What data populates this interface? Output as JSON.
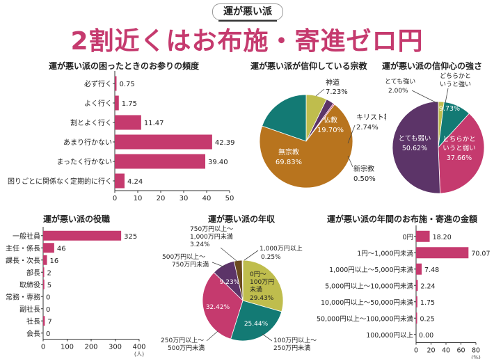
{
  "header": {
    "badge": "運が悪い派",
    "headline": "2割近くはお布施・寄進ゼロ円"
  },
  "colors": {
    "magenta": "#c53a6e",
    "olive": "#bfbd4d",
    "teal": "#137a74",
    "purple": "#5c3468",
    "brown": "#b8741e",
    "darkbrown": "#6b4a1e"
  },
  "chart_data": [
    {
      "id": "visit",
      "type": "bar",
      "orientation": "horizontal",
      "title": "運が悪い派の困ったときのお参りの頻度",
      "categories": [
        "必ず行く",
        "よく行く",
        "割とよく行く",
        "あまり行かない",
        "まったく行かない",
        "困りごとに関係なく定期的に行く"
      ],
      "values": [
        0.75,
        1.75,
        11.47,
        42.39,
        39.4,
        4.24
      ],
      "value_labels": [
        "0.75",
        "1.75",
        "11.47",
        "42.39",
        "39.40",
        "4.24"
      ],
      "ticks": [
        "0",
        "10",
        "20",
        "30",
        "40",
        "50"
      ],
      "unit": "(%)",
      "xlim": [
        0,
        50
      ]
    },
    {
      "id": "religion",
      "type": "pie",
      "title": "運が悪い派が信仰している宗教",
      "labels": [
        "神道",
        "キリスト教",
        "新宗教",
        "無宗教",
        "仏教"
      ],
      "values": [
        7.23,
        2.74,
        0.5,
        69.83,
        19.7
      ],
      "value_labels": [
        "7.23%",
        "2.74%",
        "0.50%",
        "69.83%",
        "19.70%"
      ]
    },
    {
      "id": "faith",
      "type": "pie",
      "title": "運が悪い派の信仰心の強さ",
      "labels": [
        "とても強い",
        "どちらかというと強い",
        "どちらかというと弱い",
        "とても弱い"
      ],
      "label_lines": [
        [
          "とても強い"
        ],
        [
          "どちらかと",
          "いうと強い"
        ],
        [
          "どちらかと",
          "いうと弱い"
        ],
        [
          "とても弱い"
        ]
      ],
      "values": [
        2.0,
        9.73,
        37.66,
        50.62
      ],
      "value_labels": [
        "2.00%",
        "9.73%",
        "37.66%",
        "50.62%"
      ]
    },
    {
      "id": "position",
      "type": "bar",
      "orientation": "horizontal",
      "title": "運が悪い派の役職",
      "categories": [
        "一般社員",
        "主任・係長",
        "課長・次長",
        "部長",
        "取締役",
        "常務・専務",
        "副社長",
        "社長",
        "会長"
      ],
      "values": [
        325,
        46,
        16,
        2,
        5,
        0,
        0,
        7,
        0
      ],
      "value_labels": [
        "325",
        "46",
        "16",
        "2",
        "5",
        "0",
        "0",
        "7",
        "0"
      ],
      "ticks": [
        "0",
        "100",
        "200",
        "300",
        "400"
      ],
      "unit": "(人)",
      "xlim": [
        0,
        400
      ]
    },
    {
      "id": "income",
      "type": "pie",
      "title": "運が悪い派の年収",
      "labels": [
        "0円〜100万円未満",
        "100万円以上〜250万円未満",
        "250万円以上〜500万円未満",
        "500万円以上〜750万円未満",
        "750万円以上〜1,000万円未満",
        "1,000万円以上"
      ],
      "values": [
        29.43,
        25.44,
        32.42,
        9.23,
        3.24,
        0.25
      ],
      "value_labels": [
        "29.43%",
        "25.44%",
        "32.42%",
        "9.23%",
        "3.24%",
        "0.25%"
      ]
    },
    {
      "id": "donation",
      "type": "bar",
      "orientation": "horizontal",
      "title": "運が悪い派の年間のお布施・寄進の金額",
      "categories": [
        "0円",
        "1円〜1,000円未満",
        "1,000円以上〜5,000円未満",
        "5,000円以上〜10,000円未満",
        "10,000円以上〜50,000円未満",
        "50,000円以上〜100,000円未満",
        "100,000円以上"
      ],
      "values": [
        18.2,
        70.07,
        7.48,
        2.24,
        1.75,
        0.25,
        0.0
      ],
      "value_labels": [
        "18.20",
        "70.07",
        "7.48",
        "2.24",
        "1.75",
        "0.25",
        "0.00"
      ],
      "ticks": [
        "0",
        "20",
        "40",
        "60",
        "80"
      ],
      "unit": "(%)",
      "xlim": [
        0,
        80
      ]
    }
  ]
}
